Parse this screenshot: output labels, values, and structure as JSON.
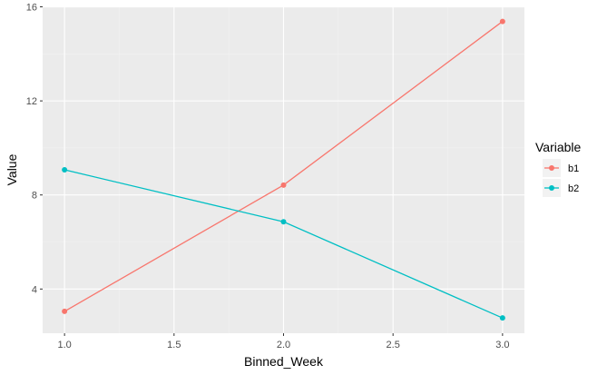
{
  "chart_data": {
    "type": "line",
    "x": [
      1.0,
      2.0,
      3.0
    ],
    "series": [
      {
        "name": "b1",
        "values": [
          3.05,
          8.42,
          15.38
        ],
        "color": "#F8766D"
      },
      {
        "name": "b2",
        "values": [
          9.07,
          6.86,
          2.77
        ],
        "color": "#00BFC4"
      }
    ],
    "xlabel": "Binned_Week",
    "ylabel": "Value",
    "xlim": [
      0.9,
      3.1
    ],
    "ylim": [
      2.12,
      16.02
    ],
    "x_ticks": [
      1.0,
      1.5,
      2.0,
      2.5,
      3.0
    ],
    "x_tick_labels": [
      "1.0",
      "1.5",
      "2.0",
      "2.5",
      "3.0"
    ],
    "y_ticks": [
      4,
      8,
      12,
      16
    ],
    "y_tick_labels": [
      "4",
      "8",
      "12",
      "16"
    ],
    "grid": true,
    "legend": {
      "title": "Variable",
      "position": "right"
    },
    "colors": {
      "panel_background": "#EBEBEB",
      "grid_major": "#FFFFFF",
      "grid_minor": "#F2F2F2"
    }
  }
}
